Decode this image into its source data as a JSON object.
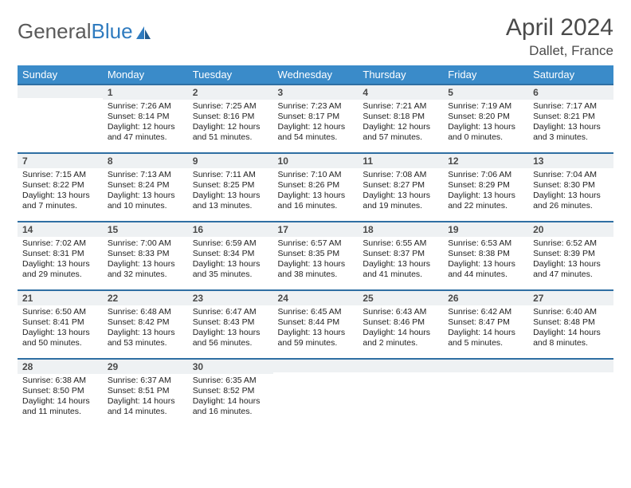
{
  "brand": {
    "part1": "General",
    "part2": "Blue"
  },
  "title": "April 2024",
  "location": "Dallet, France",
  "colors": {
    "header_bg": "#3a8bc9",
    "header_text": "#ffffff",
    "rule": "#2f6fa3",
    "daybar_bg": "#eef1f3",
    "body_text": "#222222",
    "title_text": "#4a4a4a",
    "logo_gray": "#5a5a5a",
    "logo_blue": "#2f7bbf"
  },
  "weekdays": [
    "Sunday",
    "Monday",
    "Tuesday",
    "Wednesday",
    "Thursday",
    "Friday",
    "Saturday"
  ],
  "weeks": [
    [
      {
        "n": "",
        "sr": "",
        "ss": "",
        "dl": ""
      },
      {
        "n": "1",
        "sr": "Sunrise: 7:26 AM",
        "ss": "Sunset: 8:14 PM",
        "dl": "Daylight: 12 hours and 47 minutes."
      },
      {
        "n": "2",
        "sr": "Sunrise: 7:25 AM",
        "ss": "Sunset: 8:16 PM",
        "dl": "Daylight: 12 hours and 51 minutes."
      },
      {
        "n": "3",
        "sr": "Sunrise: 7:23 AM",
        "ss": "Sunset: 8:17 PM",
        "dl": "Daylight: 12 hours and 54 minutes."
      },
      {
        "n": "4",
        "sr": "Sunrise: 7:21 AM",
        "ss": "Sunset: 8:18 PM",
        "dl": "Daylight: 12 hours and 57 minutes."
      },
      {
        "n": "5",
        "sr": "Sunrise: 7:19 AM",
        "ss": "Sunset: 8:20 PM",
        "dl": "Daylight: 13 hours and 0 minutes."
      },
      {
        "n": "6",
        "sr": "Sunrise: 7:17 AM",
        "ss": "Sunset: 8:21 PM",
        "dl": "Daylight: 13 hours and 3 minutes."
      }
    ],
    [
      {
        "n": "7",
        "sr": "Sunrise: 7:15 AM",
        "ss": "Sunset: 8:22 PM",
        "dl": "Daylight: 13 hours and 7 minutes."
      },
      {
        "n": "8",
        "sr": "Sunrise: 7:13 AM",
        "ss": "Sunset: 8:24 PM",
        "dl": "Daylight: 13 hours and 10 minutes."
      },
      {
        "n": "9",
        "sr": "Sunrise: 7:11 AM",
        "ss": "Sunset: 8:25 PM",
        "dl": "Daylight: 13 hours and 13 minutes."
      },
      {
        "n": "10",
        "sr": "Sunrise: 7:10 AM",
        "ss": "Sunset: 8:26 PM",
        "dl": "Daylight: 13 hours and 16 minutes."
      },
      {
        "n": "11",
        "sr": "Sunrise: 7:08 AM",
        "ss": "Sunset: 8:27 PM",
        "dl": "Daylight: 13 hours and 19 minutes."
      },
      {
        "n": "12",
        "sr": "Sunrise: 7:06 AM",
        "ss": "Sunset: 8:29 PM",
        "dl": "Daylight: 13 hours and 22 minutes."
      },
      {
        "n": "13",
        "sr": "Sunrise: 7:04 AM",
        "ss": "Sunset: 8:30 PM",
        "dl": "Daylight: 13 hours and 26 minutes."
      }
    ],
    [
      {
        "n": "14",
        "sr": "Sunrise: 7:02 AM",
        "ss": "Sunset: 8:31 PM",
        "dl": "Daylight: 13 hours and 29 minutes."
      },
      {
        "n": "15",
        "sr": "Sunrise: 7:00 AM",
        "ss": "Sunset: 8:33 PM",
        "dl": "Daylight: 13 hours and 32 minutes."
      },
      {
        "n": "16",
        "sr": "Sunrise: 6:59 AM",
        "ss": "Sunset: 8:34 PM",
        "dl": "Daylight: 13 hours and 35 minutes."
      },
      {
        "n": "17",
        "sr": "Sunrise: 6:57 AM",
        "ss": "Sunset: 8:35 PM",
        "dl": "Daylight: 13 hours and 38 minutes."
      },
      {
        "n": "18",
        "sr": "Sunrise: 6:55 AM",
        "ss": "Sunset: 8:37 PM",
        "dl": "Daylight: 13 hours and 41 minutes."
      },
      {
        "n": "19",
        "sr": "Sunrise: 6:53 AM",
        "ss": "Sunset: 8:38 PM",
        "dl": "Daylight: 13 hours and 44 minutes."
      },
      {
        "n": "20",
        "sr": "Sunrise: 6:52 AM",
        "ss": "Sunset: 8:39 PM",
        "dl": "Daylight: 13 hours and 47 minutes."
      }
    ],
    [
      {
        "n": "21",
        "sr": "Sunrise: 6:50 AM",
        "ss": "Sunset: 8:41 PM",
        "dl": "Daylight: 13 hours and 50 minutes."
      },
      {
        "n": "22",
        "sr": "Sunrise: 6:48 AM",
        "ss": "Sunset: 8:42 PM",
        "dl": "Daylight: 13 hours and 53 minutes."
      },
      {
        "n": "23",
        "sr": "Sunrise: 6:47 AM",
        "ss": "Sunset: 8:43 PM",
        "dl": "Daylight: 13 hours and 56 minutes."
      },
      {
        "n": "24",
        "sr": "Sunrise: 6:45 AM",
        "ss": "Sunset: 8:44 PM",
        "dl": "Daylight: 13 hours and 59 minutes."
      },
      {
        "n": "25",
        "sr": "Sunrise: 6:43 AM",
        "ss": "Sunset: 8:46 PM",
        "dl": "Daylight: 14 hours and 2 minutes."
      },
      {
        "n": "26",
        "sr": "Sunrise: 6:42 AM",
        "ss": "Sunset: 8:47 PM",
        "dl": "Daylight: 14 hours and 5 minutes."
      },
      {
        "n": "27",
        "sr": "Sunrise: 6:40 AM",
        "ss": "Sunset: 8:48 PM",
        "dl": "Daylight: 14 hours and 8 minutes."
      }
    ],
    [
      {
        "n": "28",
        "sr": "Sunrise: 6:38 AM",
        "ss": "Sunset: 8:50 PM",
        "dl": "Daylight: 14 hours and 11 minutes."
      },
      {
        "n": "29",
        "sr": "Sunrise: 6:37 AM",
        "ss": "Sunset: 8:51 PM",
        "dl": "Daylight: 14 hours and 14 minutes."
      },
      {
        "n": "30",
        "sr": "Sunrise: 6:35 AM",
        "ss": "Sunset: 8:52 PM",
        "dl": "Daylight: 14 hours and 16 minutes."
      },
      {
        "n": "",
        "sr": "",
        "ss": "",
        "dl": ""
      },
      {
        "n": "",
        "sr": "",
        "ss": "",
        "dl": ""
      },
      {
        "n": "",
        "sr": "",
        "ss": "",
        "dl": ""
      },
      {
        "n": "",
        "sr": "",
        "ss": "",
        "dl": ""
      }
    ]
  ]
}
